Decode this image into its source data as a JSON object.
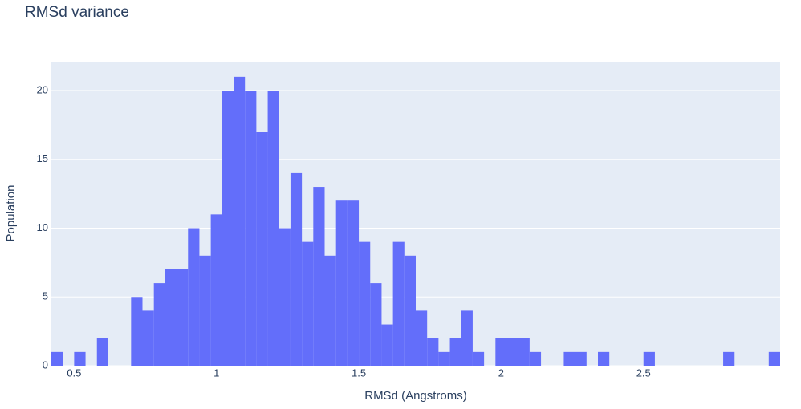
{
  "chart_data": {
    "type": "histogram",
    "title": "RMSd variance",
    "x_label": "RMSd (Angstroms)",
    "y_label": "Population",
    "color": "#636efa",
    "bins": [
      0.42,
      0.46,
      0.5,
      0.54,
      0.58,
      0.62,
      0.66,
      0.7,
      0.74,
      0.78,
      0.82,
      0.86,
      0.9,
      0.94,
      0.98,
      1.02,
      1.06,
      1.1,
      1.14,
      1.18,
      1.22,
      1.26,
      1.3,
      1.34,
      1.38,
      1.42,
      1.46,
      1.5,
      1.54,
      1.58,
      1.62,
      1.66,
      1.7,
      1.74,
      1.78,
      1.82,
      1.86,
      1.9,
      1.94,
      1.98,
      2.02,
      2.06,
      2.1,
      2.14,
      2.18,
      2.22,
      2.26,
      2.3,
      2.34,
      2.38,
      2.42,
      2.46,
      2.5,
      2.54,
      2.58,
      2.62,
      2.66,
      2.7,
      2.74,
      2.78,
      2.82,
      2.86,
      2.9,
      2.94,
      2.98
    ],
    "counts": [
      1,
      0,
      1,
      0,
      2,
      0,
      0,
      5,
      4,
      6,
      7,
      7,
      10,
      8,
      11,
      20,
      21,
      20,
      17,
      20,
      10,
      14,
      9,
      13,
      8,
      12,
      12,
      9,
      6,
      3,
      9,
      8,
      4,
      2,
      1,
      2,
      4,
      1,
      0,
      2,
      2,
      2,
      1,
      0,
      0,
      1,
      1,
      0,
      1,
      0,
      0,
      0,
      1,
      0,
      0,
      0,
      0,
      0,
      0,
      1,
      0,
      0,
      0,
      1
    ],
    "xlim": [
      0.42,
      2.98
    ],
    "xticks": [
      0.5,
      1,
      1.5,
      2,
      2.5
    ],
    "ylim": [
      0,
      22.1
    ],
    "yticks": [
      0,
      5,
      10,
      15,
      20
    ],
    "grid": true
  }
}
